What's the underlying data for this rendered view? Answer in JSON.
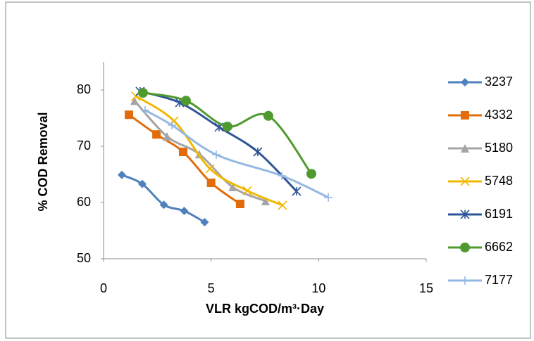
{
  "chart_data": {
    "type": "scatter",
    "smooth": true,
    "x_label": "VLR  kgCOD/m³·Day",
    "y_label": "% COD Removal",
    "xlim": [
      0,
      15
    ],
    "xticks": [
      0,
      5,
      10,
      15
    ],
    "ylim": [
      50,
      85
    ],
    "yticks": [
      50,
      60,
      70,
      80
    ],
    "grid": false,
    "legend": "right",
    "series": [
      {
        "name": "3237",
        "color": "#4f81bd",
        "marker": "diamond",
        "x": [
          0.85,
          1.8,
          2.8,
          3.75,
          4.7
        ],
        "values": [
          64.9,
          63.3,
          59.6,
          58.5,
          56.5
        ]
      },
      {
        "name": "4332",
        "color": "#e36c0a",
        "marker": "square",
        "x": [
          1.18,
          2.46,
          3.7,
          5.0,
          6.35
        ],
        "values": [
          75.6,
          72.1,
          69.0,
          63.5,
          59.75
        ]
      },
      {
        "name": "5180",
        "color": "#a5a5a5",
        "marker": "triangle",
        "x": [
          1.44,
          2.95,
          4.45,
          6.0,
          7.53
        ],
        "values": [
          78.1,
          71.75,
          68.6,
          62.75,
          60.25
        ]
      },
      {
        "name": "5748",
        "color": "#f2b800",
        "marker": "x",
        "x": [
          1.5,
          3.28,
          4.95,
          6.68,
          8.32
        ],
        "values": [
          78.9,
          74.5,
          66.0,
          62.1,
          59.5
        ]
      },
      {
        "name": "6191",
        "color": "#2e5597",
        "marker": "asterisk",
        "x": [
          1.7,
          3.54,
          5.37,
          7.17,
          8.97
        ],
        "values": [
          79.75,
          77.75,
          73.4,
          69.0,
          62.0
        ]
      },
      {
        "name": "6662",
        "color": "#4f9a2f",
        "marker": "circle",
        "x": [
          1.83,
          3.83,
          5.76,
          7.66,
          9.66
        ],
        "values": [
          79.5,
          78.1,
          73.5,
          75.4,
          65.1
        ]
      },
      {
        "name": "7177",
        "color": "#95b8e3",
        "marker": "plus",
        "x": [
          1.93,
          3.18,
          5.24,
          8.29,
          10.45
        ],
        "values": [
          76.4,
          73.75,
          68.5,
          64.75,
          60.9
        ]
      }
    ]
  }
}
